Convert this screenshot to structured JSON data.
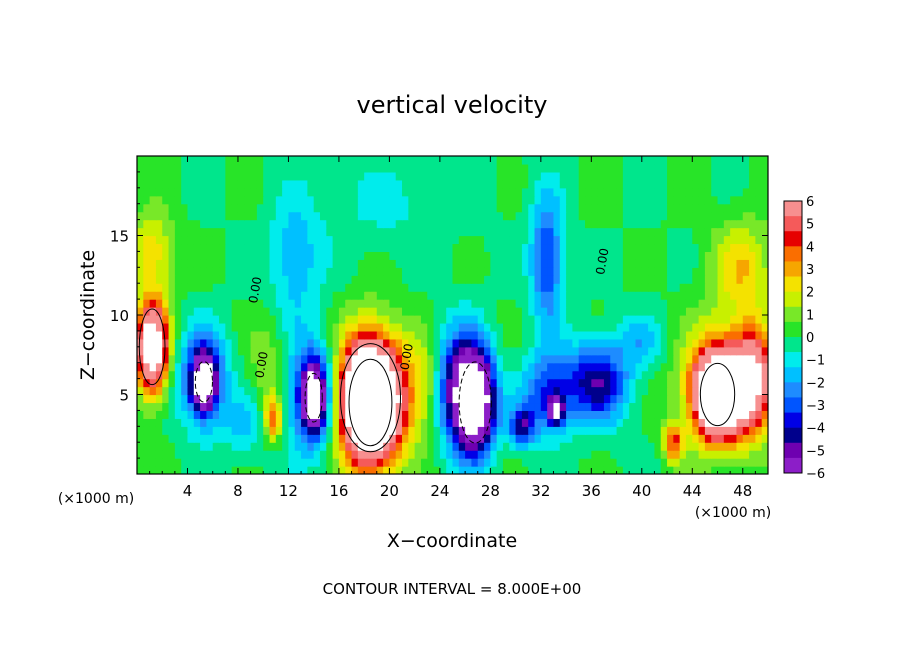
{
  "chart_data": {
    "type": "heatmap",
    "title": "vertical velocity",
    "xlabel": "X−coordinate",
    "ylabel": "Z−coordinate",
    "x_unit_left": "(×1000 m)",
    "x_unit_right": "(×1000 m)",
    "footer": "CONTOUR INTERVAL = 8.000E+00",
    "contour_label": "0.00",
    "xlim": [
      0,
      50
    ],
    "ylim": [
      0,
      20
    ],
    "x_ticks": [
      {
        "value": 4,
        "label": "4"
      },
      {
        "value": 8,
        "label": "8"
      },
      {
        "value": 12,
        "label": "12"
      },
      {
        "value": 16,
        "label": "16"
      },
      {
        "value": 20,
        "label": "20"
      },
      {
        "value": 24,
        "label": "24"
      },
      {
        "value": 28,
        "label": "28"
      },
      {
        "value": 32,
        "label": "32"
      },
      {
        "value": 36,
        "label": "36"
      },
      {
        "value": 40,
        "label": "40"
      },
      {
        "value": 44,
        "label": "44"
      },
      {
        "value": 48,
        "label": "48"
      }
    ],
    "y_ticks": [
      {
        "value": 5,
        "label": "5"
      },
      {
        "value": 10,
        "label": "10"
      },
      {
        "value": 15,
        "label": "15"
      }
    ],
    "colorbar": {
      "min": -6,
      "max": 6,
      "labels": [
        "6",
        "5",
        "4",
        "3",
        "2",
        "1",
        "0",
        "−1",
        "−2",
        "−3",
        "−4",
        "−5",
        "−6"
      ],
      "colors": [
        "#f78f8f",
        "#f55a5a",
        "#e60000",
        "#fa6e00",
        "#f6a600",
        "#f4e200",
        "#c8f000",
        "#78e828",
        "#28e428",
        "#00e68c",
        "#00ecec",
        "#00c0ff",
        "#1e8cff",
        "#0055ff",
        "#0000e6",
        "#00008c",
        "#6e00b0",
        "#8c1ec8"
      ]
    },
    "background_value": 0,
    "features": [
      {
        "x": 1.2,
        "z": 8.0,
        "rx": 1.2,
        "rz": 2.8,
        "value": 10
      },
      {
        "x": 1.2,
        "z": 14.0,
        "rx": 1.8,
        "rz": 2.5,
        "value": 2.5
      },
      {
        "x": 5.3,
        "z": 6.0,
        "rx": 1.8,
        "rz": 3.0,
        "value": -4.5
      },
      {
        "x": 5.3,
        "z": 5.8,
        "rx": 0.8,
        "rz": 1.5,
        "value": -8
      },
      {
        "x": 10.5,
        "z": 6.5,
        "rx": 1.5,
        "rz": 3.0,
        "value": 1.5
      },
      {
        "x": 10.8,
        "z": 3.5,
        "rx": 0.7,
        "rz": 1.3,
        "value": 4
      },
      {
        "x": 14.0,
        "z": 5.0,
        "rx": 2.2,
        "rz": 3.5,
        "value": -4.5
      },
      {
        "x": 14.0,
        "z": 4.8,
        "rx": 0.8,
        "rz": 1.8,
        "value": -8
      },
      {
        "x": 18.5,
        "z": 4.8,
        "rx": 2.8,
        "rz": 4.0,
        "value": 8
      },
      {
        "x": 18.5,
        "z": 4.5,
        "rx": 2.0,
        "rz": 3.2,
        "value": 10
      },
      {
        "x": 23.0,
        "z": 5.5,
        "rx": 1.5,
        "rz": 3.0,
        "value": 2
      },
      {
        "x": 25.5,
        "z": 5.5,
        "rx": 2.0,
        "rz": 3.5,
        "value": -5
      },
      {
        "x": 26.8,
        "z": 4.5,
        "rx": 1.5,
        "rz": 3.0,
        "value": -9
      },
      {
        "x": 30.5,
        "z": 3.0,
        "rx": 1.0,
        "rz": 1.2,
        "value": -4
      },
      {
        "x": 32.5,
        "z": 5.0,
        "rx": 2.0,
        "rz": 2.5,
        "value": -3.5
      },
      {
        "x": 33.2,
        "z": 4.0,
        "rx": 0.6,
        "rz": 0.8,
        "value": -6
      },
      {
        "x": 32.5,
        "z": 13.5,
        "rx": 1.3,
        "rz": 4.0,
        "value": -3.5
      },
      {
        "x": 36.5,
        "z": 5.8,
        "rx": 2.5,
        "rz": 2.5,
        "value": -4.5
      },
      {
        "x": 12.5,
        "z": 13.5,
        "rx": 2.0,
        "rz": 3.5,
        "value": -2
      },
      {
        "x": 46.5,
        "z": 5.5,
        "rx": 3.0,
        "rz": 3.5,
        "value": 6
      },
      {
        "x": 46.0,
        "z": 5.0,
        "rx": 1.6,
        "rz": 2.3,
        "value": 10
      },
      {
        "x": 48.8,
        "z": 6.0,
        "rx": 1.5,
        "rz": 3.0,
        "value": 6
      },
      {
        "x": 48.0,
        "z": 13.0,
        "rx": 2.5,
        "rz": 3.0,
        "value": 2.5
      },
      {
        "x": 42.5,
        "z": 2.0,
        "rx": 0.8,
        "rz": 1.2,
        "value": 4
      },
      {
        "x": 40.0,
        "z": 8.5,
        "rx": 2.0,
        "rz": 1.5,
        "value": -1.5
      },
      {
        "x": 8.5,
        "z": 3.0,
        "rx": 1.5,
        "rz": 2.0,
        "value": -1.5
      },
      {
        "x": 20.0,
        "z": 17.0,
        "rx": 6.0,
        "rz": 3.0,
        "value": -0.8
      }
    ]
  }
}
